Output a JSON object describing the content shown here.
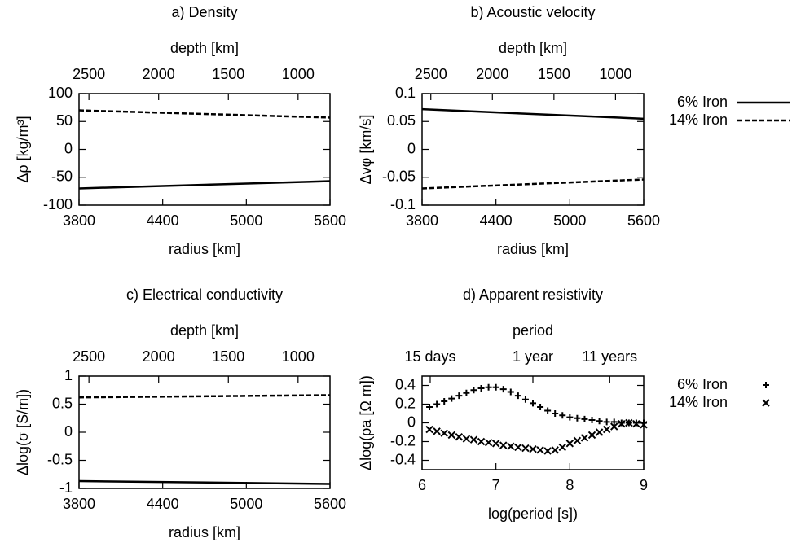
{
  "chart_data": [
    {
      "type": "line",
      "title": "a) Density",
      "x_label": "radius [km]",
      "x2_label": "depth [km]",
      "y_label": "Δρ [kg/m³]",
      "x": [
        3800,
        5600
      ],
      "series": [
        {
          "color": "#000000",
          "dash": "solid",
          "values": [
            -70,
            -57
          ]
        },
        {
          "color": "#000000",
          "dash": "dashed",
          "values": [
            70,
            57
          ]
        }
      ],
      "xlim": [
        3800,
        5600
      ],
      "xticks": [
        3800,
        4400,
        5000,
        5600
      ],
      "x2lim": [
        2571,
        771
      ],
      "x2ticks": [
        2500,
        2000,
        1500,
        1000
      ],
      "ylim": [
        -100,
        100
      ],
      "yticks": [
        -100,
        -50,
        0,
        50,
        100
      ]
    },
    {
      "type": "line",
      "title": "b) Acoustic velocity",
      "x_label": "radius [km]",
      "x2_label": "depth [km]",
      "y_label": "Δvφ [km/s]",
      "x": [
        3800,
        5600
      ],
      "series": [
        {
          "name": "6% Iron",
          "color": "#000000",
          "dash": "solid",
          "values": [
            0.072,
            0.055
          ]
        },
        {
          "name": "14% Iron",
          "color": "#000000",
          "dash": "dashed",
          "values": [
            -0.07,
            -0.054
          ]
        }
      ],
      "xlim": [
        3800,
        5600
      ],
      "xticks": [
        3800,
        4400,
        5000,
        5600
      ],
      "x2lim": [
        2571,
        771
      ],
      "x2ticks": [
        2500,
        2000,
        1500,
        1000
      ],
      "ylim": [
        -0.1,
        0.1
      ],
      "yticks": [
        -0.1,
        -0.05,
        0,
        0.05,
        0.1
      ],
      "legend": "outside right"
    },
    {
      "type": "line",
      "title": "c) Electrical conductivity",
      "x_label": "radius [km]",
      "x2_label": "depth [km]",
      "y_label": "Δlog(σ [S/m])",
      "x": [
        3800,
        5600
      ],
      "series": [
        {
          "color": "#000000",
          "dash": "solid",
          "values": [
            -0.87,
            -0.92
          ]
        },
        {
          "color": "#000000",
          "dash": "dashed",
          "values": [
            0.62,
            0.66
          ]
        }
      ],
      "xlim": [
        3800,
        5600
      ],
      "xticks": [
        3800,
        4400,
        5000,
        5600
      ],
      "x2lim": [
        2571,
        771
      ],
      "x2ticks": [
        2500,
        2000,
        1500,
        1000
      ],
      "ylim": [
        -1,
        1
      ],
      "yticks": [
        -1,
        -0.5,
        0,
        0.5,
        1
      ]
    },
    {
      "type": "scatter",
      "title": "d) Apparent resistivity",
      "x_label": "log(period [s])",
      "x2_label": "period",
      "y_label": "Δlog(ρa [Ω m])",
      "x": [
        6.1,
        6.2,
        6.3,
        6.4,
        6.5,
        6.6,
        6.7,
        6.8,
        6.9,
        7.0,
        7.1,
        7.2,
        7.3,
        7.4,
        7.5,
        7.6,
        7.7,
        7.8,
        7.9,
        8.0,
        8.1,
        8.2,
        8.3,
        8.4,
        8.5,
        8.6,
        8.7,
        8.8,
        8.9,
        9.0
      ],
      "series": [
        {
          "name": "6% Iron",
          "color": "#000000",
          "marker": "plus",
          "values": [
            0.17,
            0.2,
            0.23,
            0.26,
            0.29,
            0.32,
            0.35,
            0.37,
            0.38,
            0.38,
            0.36,
            0.33,
            0.29,
            0.25,
            0.21,
            0.17,
            0.13,
            0.1,
            0.08,
            0.06,
            0.05,
            0.04,
            0.03,
            0.02,
            0.01,
            0.01,
            0,
            0,
            0,
            0
          ]
        },
        {
          "name": "14% Iron",
          "color": "#000000",
          "marker": "cross",
          "values": [
            -0.07,
            -0.09,
            -0.11,
            -0.13,
            -0.15,
            -0.17,
            -0.18,
            -0.2,
            -0.21,
            -0.22,
            -0.24,
            -0.25,
            -0.26,
            -0.27,
            -0.28,
            -0.29,
            -0.3,
            -0.29,
            -0.26,
            -0.22,
            -0.19,
            -0.16,
            -0.13,
            -0.1,
            -0.07,
            -0.04,
            -0.01,
            0,
            -0.01,
            -0.02
          ]
        }
      ],
      "xlim": [
        6,
        9
      ],
      "xticks": [
        6,
        7,
        8,
        9
      ],
      "x2lim": [
        6,
        9
      ],
      "x2ticks": [
        {
          "value": 6.11,
          "label": "15 days"
        },
        {
          "value": 7.5,
          "label": "1 year"
        },
        {
          "value": 8.54,
          "label": "11 years"
        }
      ],
      "ylim": [
        -0.5,
        0.5
      ],
      "yticks": [
        -0.4,
        -0.2,
        0,
        0.2,
        0.4
      ],
      "legend": "outside right"
    }
  ]
}
